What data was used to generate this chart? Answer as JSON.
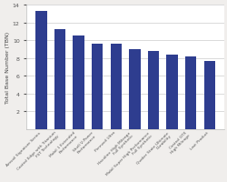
{
  "title": "",
  "ylabel": "Total Base Number (TBN)",
  "categories": [
    "Amsoil Signature Series",
    "Castrol Edge with Titanium\nFST Technology",
    "Mobil 1 Extended\nPerformance",
    "Shell V-Power\nPerformance",
    "Pennzoil Ultra",
    "Havoline High Mileage\nFull Synthetic",
    "Mobil Super High Performance\nFull Synthetic",
    "Quaker State Ultimate\nDurability",
    "Castrol GTX\nHigh Mileage",
    "Last Product"
  ],
  "values": [
    13.3,
    11.2,
    10.5,
    9.65,
    9.6,
    9.0,
    8.75,
    8.4,
    8.15,
    7.7
  ],
  "bar_color": "#2e3d8f",
  "ylim": [
    0,
    14
  ],
  "yticks": [
    2,
    4,
    6,
    8,
    10,
    12,
    14
  ],
  "bg_color": "#ffffff",
  "fig_bg": "#f0eeec"
}
